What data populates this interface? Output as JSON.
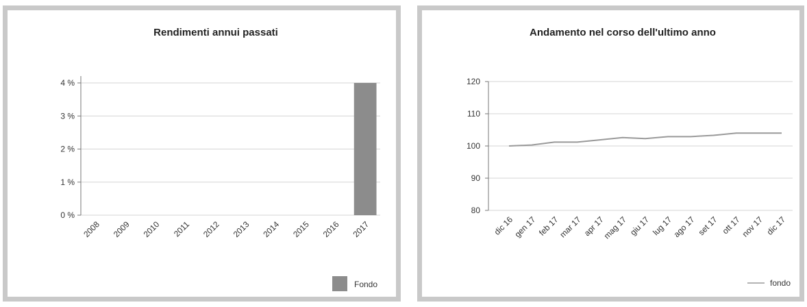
{
  "charts": [
    {
      "title": "Rendimenti annui passati",
      "type": "bar",
      "categories": [
        "2008",
        "2009",
        "2010",
        "2011",
        "2012",
        "2013",
        "2014",
        "2015",
        "2016",
        "2017"
      ],
      "y_ticks": [
        "0 %",
        "1 %",
        "2 %",
        "3 %",
        "4 %"
      ],
      "legend": "Fondo"
    },
    {
      "title": "Andamento nel corso dell'ultimo anno",
      "type": "line",
      "categories": [
        "dic 16",
        "gen 17",
        "feb 17",
        "mar 17",
        "apr 17",
        "mag 17",
        "giu 17",
        "lug 17",
        "ago 17",
        "set 17",
        "ott 17",
        "nov 17",
        "dic 17"
      ],
      "y_ticks": [
        "80",
        "90",
        "100",
        "110",
        "120"
      ],
      "legend": "fondo"
    }
  ],
  "chart_data": [
    {
      "type": "bar",
      "title": "Rendimenti annui passati",
      "categories": [
        "2008",
        "2009",
        "2010",
        "2011",
        "2012",
        "2013",
        "2014",
        "2015",
        "2016",
        "2017"
      ],
      "series": [
        {
          "name": "Fondo",
          "values": [
            null,
            null,
            null,
            null,
            null,
            null,
            null,
            null,
            null,
            4.0
          ],
          "color": "#8c8c8c"
        }
      ],
      "ylim": [
        0,
        4
      ],
      "y_ticks": [
        0,
        1,
        2,
        3,
        4
      ],
      "y_tick_suffix": " %",
      "grid": true,
      "legend_position": "bottom-right"
    },
    {
      "type": "line",
      "title": "Andamento nel corso dell'ultimo anno",
      "categories": [
        "dic 16",
        "gen 17",
        "feb 17",
        "mar 17",
        "apr 17",
        "mag 17",
        "giu 17",
        "lug 17",
        "ago 17",
        "set 17",
        "ott 17",
        "nov 17",
        "dic 17"
      ],
      "series": [
        {
          "name": "fondo",
          "values": [
            100.0,
            100.3,
            101.2,
            101.2,
            101.9,
            102.6,
            102.3,
            102.9,
            102.9,
            103.3,
            104.0,
            104.0,
            104.0
          ],
          "color": "#999999"
        }
      ],
      "ylim": [
        80,
        120
      ],
      "y_ticks": [
        80,
        90,
        100,
        110,
        120
      ],
      "grid": true,
      "legend_position": "bottom-right"
    }
  ]
}
